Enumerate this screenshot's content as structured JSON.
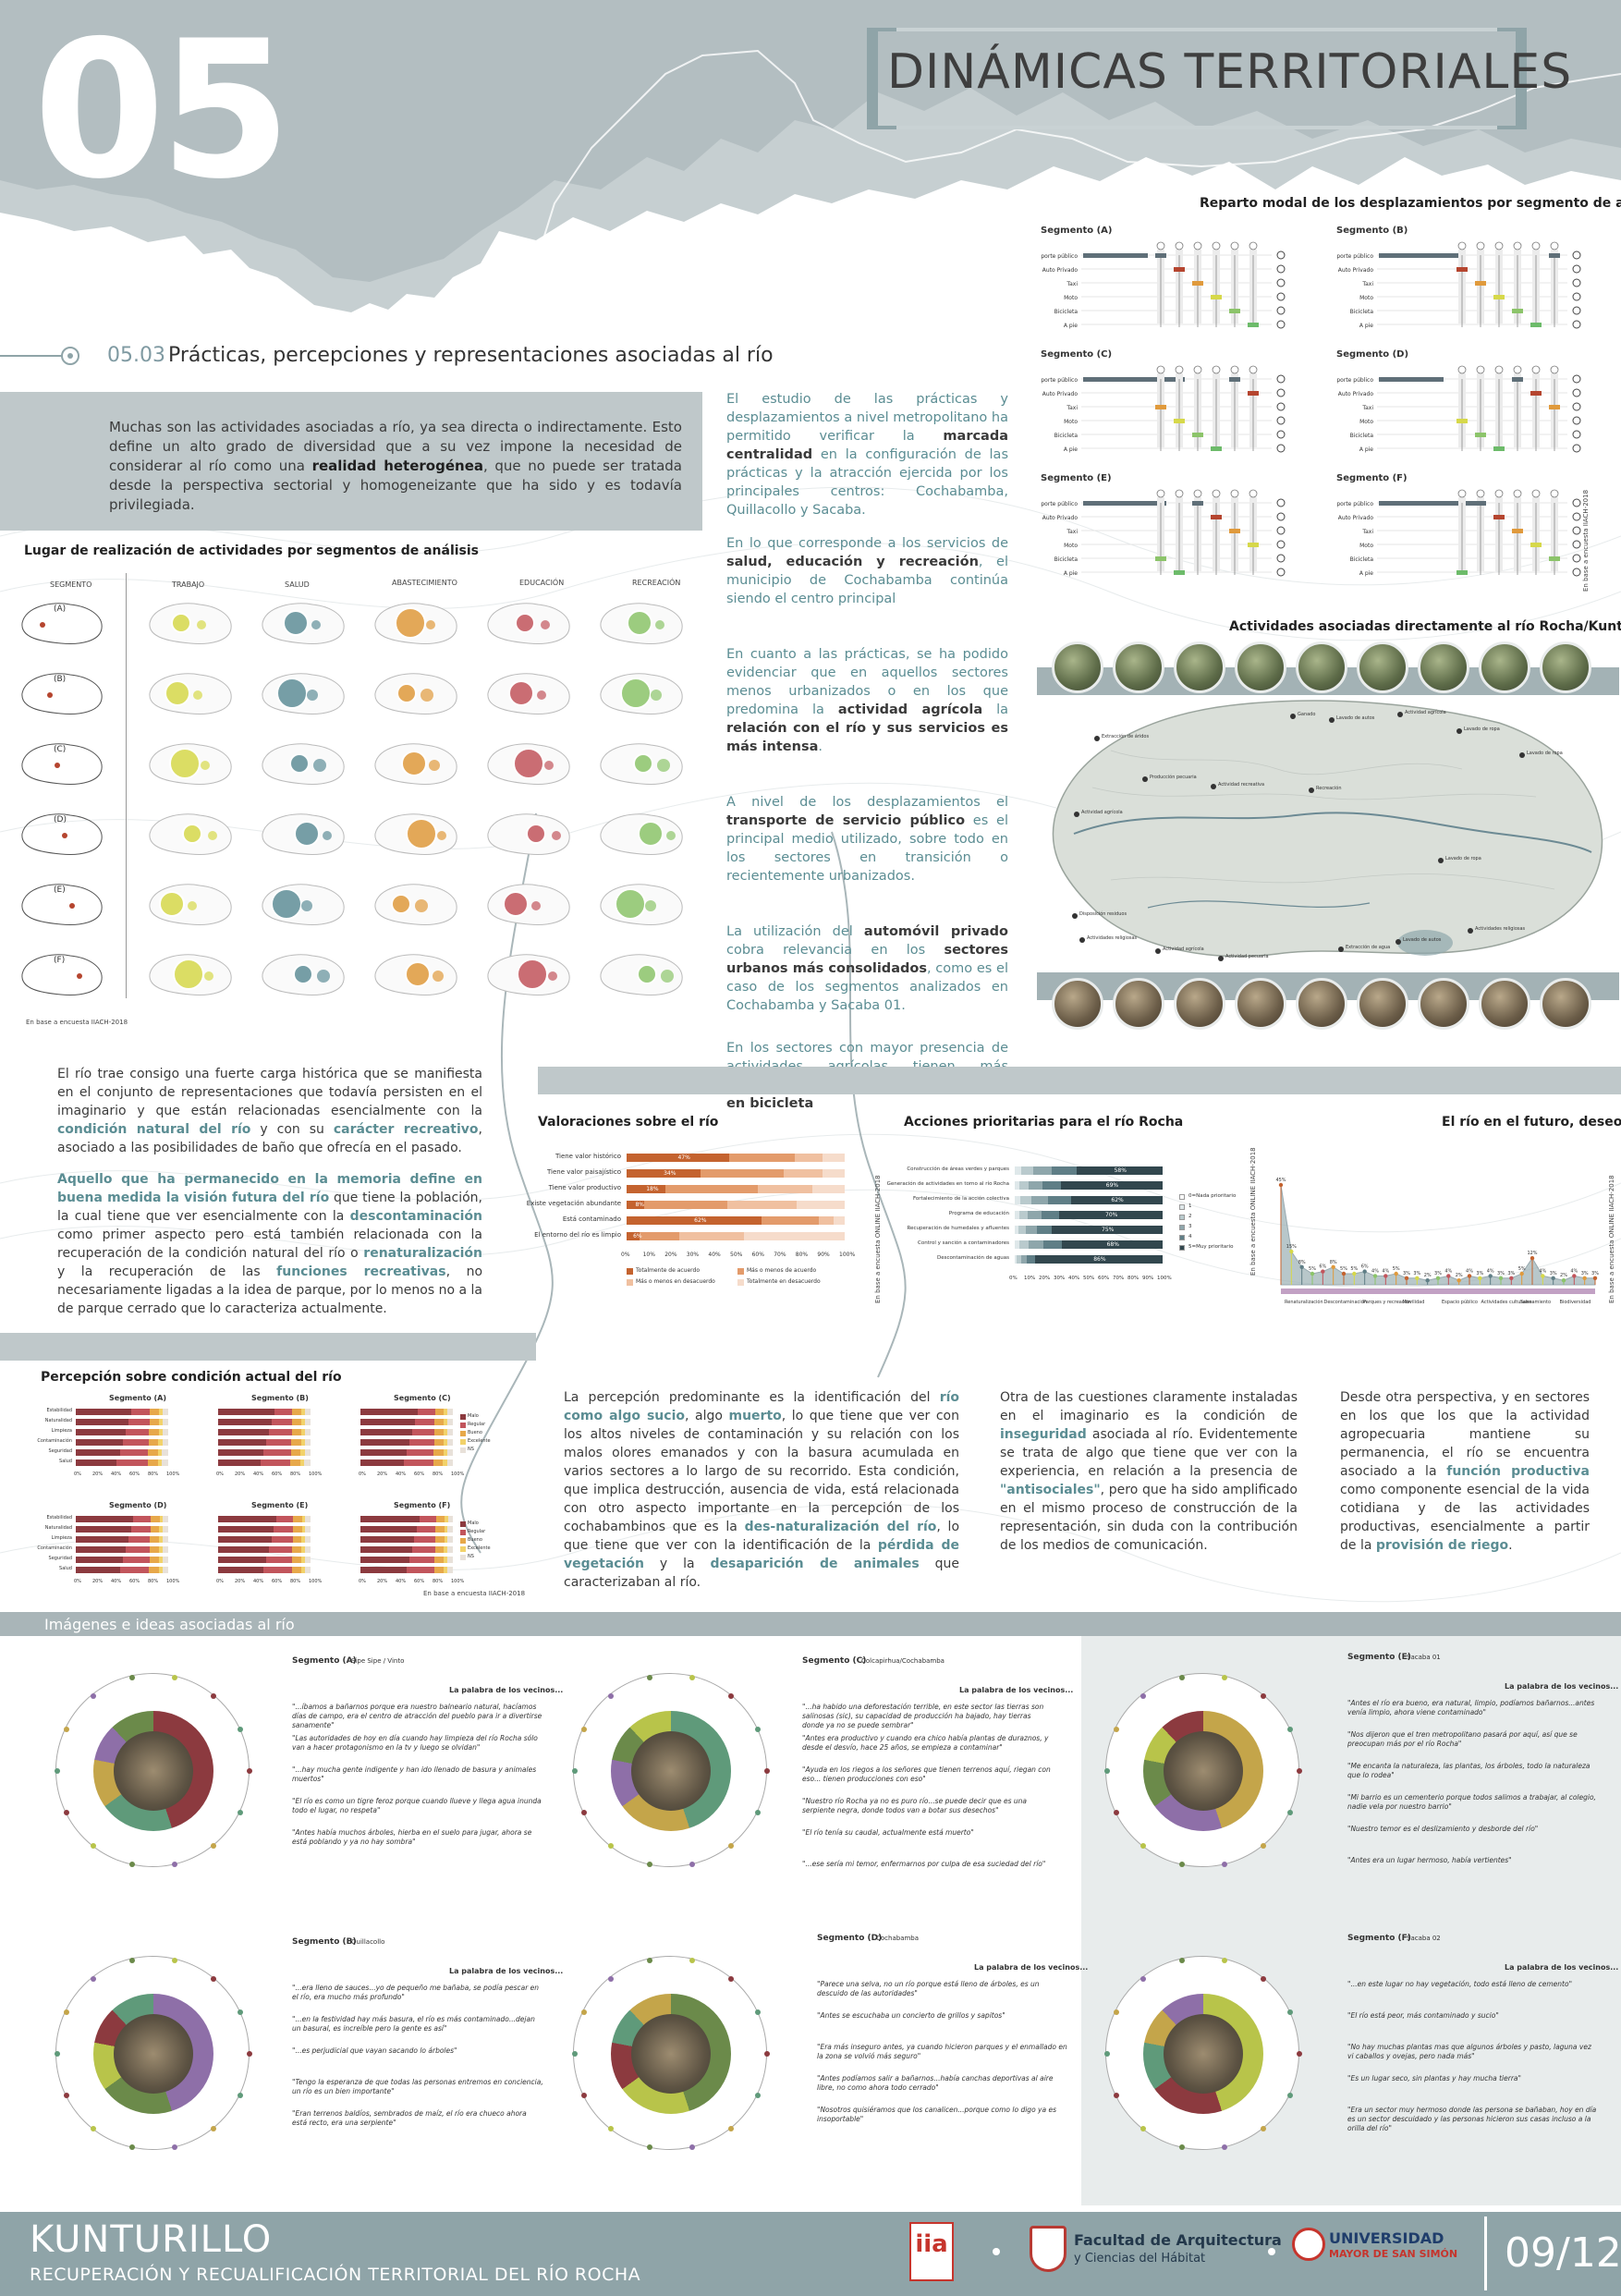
{
  "header": {
    "number": "05",
    "title": "DINÁMICAS TERRITORIALES",
    "section_code": "05.03",
    "section_title": "Prácticas, percepciones y representaciones asociadas al río"
  },
  "intro": {
    "p1_a": "Muchas son las actividades asociadas a río, ya sea directa o indirectamente. Esto define un alto grado de diversidad que a su vez impone la necesidad de considerar al río como una",
    "p1_b": "realidad heterogénea",
    "p1_c": ", que no puede ser tratada desde la perspectiva sectorial y homogeneizante que ha sido y es todavía privilegiada."
  },
  "activities_chart": {
    "title": "Lugar de realización de actividades por segmentos de análisis",
    "columns": [
      "SEGMENTO",
      "TRABAJO",
      "SALUD",
      "ABASTECIMIENTO",
      "EDUCACIÓN",
      "RECREACIÓN"
    ],
    "rows": [
      "(A)",
      "(B)",
      "(C)",
      "(D)",
      "(E)",
      "(F)"
    ],
    "source": "En base a encuesta IIACH-2018",
    "colors": [
      "#d6d84a",
      "#5f8f98",
      "#e09a3c",
      "#c2555c",
      "#8cc46a"
    ]
  },
  "center_text": {
    "p1_a": "El estudio de las prácticas y desplazamientos a nivel metropolitano ha permitido verificar la",
    "p1_b": "marcada centralidad",
    "p1_c": "en la configuración de las prácticas y la atracción ejercida por los principales centros: Cochabamba, Quillacollo y Sacaba.",
    "p2_a": "En lo que corresponde a los servicios de",
    "p2_b": "salud, educación y recreación",
    "p2_c": ", el municipio de Cochabamba continúa siendo el centro principal",
    "p3_a": "En cuanto a las prácticas, se ha podido evidenciar que en aquellos sectores menos urbanizados o en los que predomina la",
    "p3_b": "actividad agrícola",
    "p3_c": "la",
    "p3_d": "relación con el río y sus servicios es más intensa",
    "p3_e": ".",
    "p4_a": "A nivel de los desplazamientos el",
    "p4_b": "transporte de servicio público",
    "p4_c": "es el principal medio utilizado, sobre todo en los sectores en transición o recientemente urbanizados.",
    "p5_a": "La utilización del",
    "p5_b": "automóvil privado",
    "p5_c": "cobra relevancia en los",
    "p5_d": "sectores urbanos más consolidados",
    "p5_e": ", como es el caso de los segmentos analizados en Cochabamba y Sacaba 01.",
    "p6_a": "En los sectores con mayor presencia de actividades agrícolas tienen más importancia los desplazamientos",
    "p6_b": "a pie y en bicicleta"
  },
  "modal_chart": {
    "title": "Reparto modal de los desplazamientos por segmento de análisis",
    "segments": [
      "Segmento (A)",
      "Segmento (B)",
      "Segmento (C)",
      "Segmento (D)",
      "Segmento (E)",
      "Segmento (F)"
    ],
    "modes": [
      "Transporte público",
      "Auto Privado",
      "Taxi",
      "Moto",
      "Bicicleta",
      "A pie"
    ],
    "mode_colors": [
      "#5f6f78",
      "#b5452f",
      "#e09a3c",
      "#d6d84a",
      "#8cc46a",
      "#6dbb6a"
    ],
    "source": "En base a encuesta IIACH-2018"
  },
  "river_activities": {
    "title": "Actividades asociadas directamente al río Rocha/Kunturillo",
    "labels": [
      "Extracción de áridos",
      "Producción pecuaria",
      "Actividad agrícola",
      "Ganado",
      "Lavado de autos",
      "Actividad agrícola",
      "Lavado de ropa",
      "Lavado de ropa",
      "Actividad recreativa",
      "Recreación",
      "Lavado de ropa",
      "Actividades religiosas",
      "Disposición residuos",
      "Actividades religiosas",
      "Actividad agrícola",
      "Extracción de agua",
      "Lavado de autos",
      "Actividad pecuaria"
    ]
  },
  "memory_text": {
    "p1_a": "El río trae consigo una fuerte carga histórica que se manifiesta en el conjunto de representaciones que todavía persisten en el imaginario y que están relacionadas esencialmente con la",
    "p1_b": "condición natural del río",
    "p1_c": "y con su",
    "p1_d": "carácter recreativo",
    "p1_e": ", asociado a las posibilidades de baño que ofrecía en el pasado.",
    "p2_a": "Aquello que ha permanecido en la memoria define en buena medida la visión futura del río",
    "p2_b": "que tiene la población, la cual tiene que ver esencialmente con la",
    "p2_c": "descontaminación",
    "p2_d": "como primer aspecto pero está también relacionada con la recuperación de la condición natural del río o",
    "p2_e": "renaturalización",
    "p2_f": "y la recuperación de las",
    "p2_g": "funciones recreativas",
    "p2_h": ", no necesariamente ligadas a la idea de parque, por lo menos no a la de parque cerrado que lo caracteriza actualmente."
  },
  "valoraciones": {
    "title": "Valoraciones sobre el río",
    "rows": [
      "Tiene valor histórico",
      "Tiene valor paisajístico",
      "Tiene valor productivo",
      "Existe vegetación abundante",
      "Está contaminado",
      "El entorno del río es limpio"
    ],
    "values": [
      [
        47,
        30,
        13,
        10
      ],
      [
        34,
        38,
        18,
        10
      ],
      [
        18,
        42,
        25,
        15
      ],
      [
        8,
        38,
        32,
        22
      ],
      [
        62,
        26,
        7,
        5
      ],
      [
        6,
        18,
        30,
        46
      ]
    ],
    "labels": [
      "47%",
      "34%",
      "18%",
      "8%",
      "62%",
      "6%"
    ],
    "legend": [
      "Totalmente de acuerdo",
      "Más o menos de acuerdo",
      "Más o menos en desacuerdo",
      "Totalmente en desacuerdo"
    ],
    "colors": [
      "#c4632f",
      "#e39b6b",
      "#f0c0a0",
      "#f6dccb"
    ],
    "axis": [
      "0%",
      "10%",
      "20%",
      "30%",
      "40%",
      "50%",
      "60%",
      "70%",
      "80%",
      "90%",
      "100%"
    ],
    "source": "En base a encuesta ONLINE IIACH-2018"
  },
  "acciones": {
    "title": "Acciones prioritarias para el río Rocha",
    "rows": [
      "Construcción de áreas verdes y parques",
      "Generación de actividades en torno al río Rocha",
      "Fortalecimiento de la acción colectiva",
      "Programa de educación",
      "Recuperación de humedales y afluentes",
      "Control y sanción a contaminadores",
      "Descontaminación de aguas"
    ],
    "labels": [
      "58%",
      "69%",
      "62%",
      "70%",
      "75%",
      "68%",
      "86%"
    ],
    "values": [
      58,
      69,
      62,
      70,
      75,
      68,
      86
    ],
    "legend": [
      "0=Nada prioritario",
      "1",
      "2",
      "3",
      "4",
      "5=Muy prioritario"
    ],
    "colors": [
      "#ffffff",
      "#dfe8ea",
      "#b9cacd",
      "#8ea6ab",
      "#5f7e86",
      "#32474e"
    ],
    "axis": [
      "0%",
      "10%",
      "20%",
      "30%",
      "40%",
      "50%",
      "60%",
      "70%",
      "80%",
      "90%",
      "100%"
    ],
    "source": "En base a encuesta ONLINE IIACH-2018"
  },
  "futuro": {
    "title": "El río en el futuro, deseos",
    "values": [
      45,
      15,
      8,
      5,
      6,
      8,
      5,
      5,
      6,
      4,
      4,
      5,
      3,
      3,
      2,
      3,
      4,
      2,
      4,
      3,
      4,
      3,
      3,
      5,
      12,
      4,
      3,
      2,
      4,
      3,
      3
    ],
    "labels": [
      "45%",
      "15%",
      "8%",
      "5%",
      "6%",
      "8%",
      "5%",
      "5%",
      "6%",
      "4%",
      "4%",
      "5%",
      "3%",
      "3%",
      "2%",
      "3%",
      "4%",
      "2%",
      "4%",
      "3%",
      "4%",
      "3%",
      "3%",
      "5%",
      "12%",
      "4%",
      "3%",
      "2%",
      "4%",
      "3%",
      "3%"
    ],
    "categories": [
      "Renaturalización",
      "Descontaminación",
      "Parques y recreación",
      "Movilidad",
      "Espacio público",
      "Actividades culturales",
      "Saneamiento",
      "Biodiversidad"
    ],
    "source": "En base a encuesta ONLINE IIACH-2018"
  },
  "percepcion": {
    "title": "Percepción sobre condición actual del río",
    "segments": [
      "Segmento (A)",
      "Segmento (B)",
      "Segmento (C)",
      "Segmento (D)",
      "Segmento (E)",
      "Segmento (F)"
    ],
    "rows": [
      "Estabilidad",
      "Naturalidad",
      "Limpieza",
      "Contaminación",
      "Seguridad",
      "Salud"
    ],
    "legend": [
      "Malo",
      "Regular",
      "Bueno",
      "Excelente",
      "NS"
    ],
    "colors": [
      "#8c3a3f",
      "#c2555c",
      "#e7a84a",
      "#f2d26a",
      "#e8e1d9"
    ],
    "axis": [
      "0%",
      "20%",
      "40%",
      "60%",
      "80%",
      "100%"
    ],
    "source": "En base a encuesta IIACH-2018"
  },
  "bottom_text": {
    "p1_a": "La percepción predominante es la identificación del",
    "p1_b": "río como algo sucio",
    "p1_c": ", algo",
    "p1_d": "muerto",
    "p1_e": ", lo que tiene que ver con los altos niveles de contaminación y su relación con los malos olores emanados y con la basura acumulada en varios sectores a lo largo de su recorrido. Esta condición, que implica destrucción, ausencia de vida, está relacionada con otro aspecto importante en la percepción de los cochabambinos que es la",
    "p1_f": "des-naturalización del río",
    "p1_g": ", lo que tiene que ver con la identificación de la",
    "p1_h": "pérdida de vegetación",
    "p1_i": "y la",
    "p1_j": "desaparición de animales",
    "p1_k": "que caracterizaban al río.",
    "p2_a": "Otra de las cuestiones claramente instaladas en el imaginario es la condición de",
    "p2_b": "inseguridad",
    "p2_c": "asociada al río. Evidentemente se trata de algo que tiene que ver con la experiencia, en relación a la presencia de",
    "p2_d": "\"antisociales\"",
    "p2_e": ", pero que ha sido amplificado en el mismo proceso de construcción de la representación, sin duda con la contribución de los medios de comunicación.",
    "p3_a": "Desde otra perspectiva, y en sectores en los que los que la actividad agropecuaria mantiene su permanencia, el río se encuentra asociado a la",
    "p3_b": "función productiva",
    "p3_c": "como componente esencial de la vida cotidiana y de las actividades productivas, esencialmente a partir de la",
    "p3_d": "provisión de riego",
    "p3_e": "."
  },
  "images_section": {
    "title": "Imágenes e ideas asociadas al río",
    "blocks": [
      {
        "segment": "Segmento (A)",
        "place": "Sipe Sipe / Vinto",
        "heading": "La palabra de los vecinos...",
        "quotes": [
          "\"...íbamos a bañarnos porque era nuestro balneario natural, hacíamos días de campo, era el centro de atracción del pueblo para ir a divertirse sanamente\"",
          "\"Las autoridades de hoy en día cuando hay limpieza del río Rocha sólo van a hacer protagonismo en la tv y luego se olvidan\"",
          "\"...hay mucha gente indigente y han ido llenado de basura y animales muertos\"",
          "\"El río es como un tigre feroz porque cuando llueve y llega agua inunda todo el lugar, no respeta\"",
          "\"Antes había muchos árboles, hierba en el suelo para jugar, ahora se está poblando y ya no hay sombra\""
        ]
      },
      {
        "segment": "Segmento (C)",
        "place": "Colcapirhua/Cochabamba",
        "heading": "La palabra de los vecinos...",
        "quotes": [
          "\"...ha habido una deforestación terrible, en este sector las tierras son salinosas (sic), su capacidad de producción ha bajado, hay tierras donde ya no se puede sembrar\"",
          "\"Antes era productivo y cuando era chico había plantas de duraznos, y desde el desvío, hace 25 años, se empieza a contaminar\"",
          "\"Ayuda en los riegos a los señores que tienen terrenos aquí, riegan con eso... tienen producciones con eso\"",
          "\"Nuestro río Rocha ya no es puro río...se puede decir que es una serpiente negra, donde todos van a botar sus desechos\"",
          "\"El río tenía su caudal, actualmente está muerto\"",
          "\"...ese sería mi temor, enfermarnos por culpa de esa suciedad del río\""
        ]
      },
      {
        "segment": "Segmento (E)",
        "place": "Sacaba 01",
        "heading": "La palabra de los vecinos...",
        "quotes": [
          "\"Antes el río era bueno, era natural, limpio, podíamos bañarnos...antes venía limpio, ahora viene contaminado\"",
          "\"Nos dijeron que el tren metropolitano pasará por aquí, así que se preocupan más por el río Rocha\"",
          "\"Me encanta la naturaleza, las plantas, los árboles, todo la naturaleza que lo rodea\"",
          "\"Mi barrio es un cementerio porque todos salimos a trabajar, al colegio, nadie vela por nuestro barrio\"",
          "\"Nuestro temor es el deslizamiento y desborde del río\"",
          "\"Antes era un lugar hermoso, había vertientes\""
        ]
      },
      {
        "segment": "Segmento (B)",
        "place": "Quillacollo",
        "heading": "La palabra de los vecinos...",
        "quotes": [
          "\"...era lleno de sauces...yo de pequeño me bañaba, se podía pescar en el río, era mucho más profundo\"",
          "\"...en la festividad hay más basura, el río es más contaminado...dejan un basural, es increíble pero la gente es así\"",
          "\"...es perjudicial que vayan sacando lo árboles\"",
          "\"Tengo la esperanza de que todas las personas entremos en conciencia, un río es un bien importante\"",
          "\"Eran terrenos baldíos, sembrados de maíz, el río era chueco ahora está recto, era una serpiente\""
        ]
      },
      {
        "segment": "Segmento (D)",
        "place": "Cochabamba",
        "heading": "La palabra de los vecinos...",
        "quotes": [
          "\"Parece una selva, no un río porque está lleno de árboles, es un descuido de las autoridades\"",
          "\"Antes se escuchaba un concierto de grillos y sapitos\"",
          "\"Era más inseguro antes, ya cuando hicieron parques y el enmallado en la zona se volvió más seguro\"",
          "\"Antes podíamos salir a bañarnos...había canchas deportivas al aire libre, no como ahora todo cerrado\"",
          "\"Nosotros quisiéramos que los canalicen...porque como lo digo ya es insoportable\""
        ]
      },
      {
        "segment": "Segmento (F)",
        "place": "Sacaba 02",
        "heading": "La palabra de los vecinos...",
        "quotes": [
          "\"...en este lugar no hay vegetación, todo está lleno de cemento\"",
          "\"El río está peor, más contaminado y sucio\"",
          "\"No hay muchas plantas mas que algunos árboles y pasto, laguna vez vi caballos y ovejas, pero nada más\"",
          "\"Es un lugar seco, sin plantas y hay mucha tierra\"",
          "\"Era un sector muy hermoso donde las persona se bañaban, hoy en día es un sector descuidado y las personas hicieron sus casas incluso a la orilla del río\""
        ]
      }
    ]
  },
  "footer": {
    "project": "KUNTURILLO",
    "subtitle": "RECUPERACIÓN Y RECUALIFICACIÓN TERRITORIAL DEL RÍO ROCHA",
    "faculty_line1": "Facultad de Arquitectura",
    "faculty_line2": "y Ciencias del Hábitat",
    "university_line1": "UNIVERSIDAD",
    "university_line2": "MAYOR DE SAN SIMÓN",
    "iiach_label": "iia",
    "page": "09/12"
  }
}
